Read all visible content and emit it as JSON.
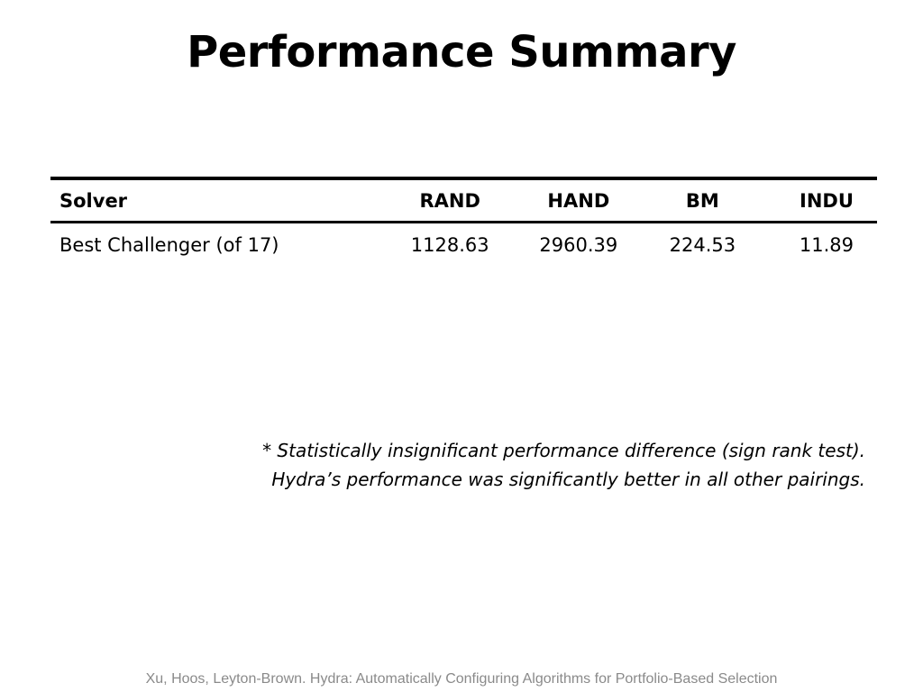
{
  "slide": {
    "title": "Performance Summary",
    "footer": "Xu, Hoos, Leyton-Brown. Hydra: Automatically Configuring Algorithms for Portfolio-Based Selection"
  },
  "table": {
    "headers": [
      "Solver",
      "RAND",
      "HAND",
      "BM",
      "INDU"
    ],
    "rows": [
      {
        "label": "Best Challenger (of 17)",
        "values": [
          "1128.63",
          "2960.39",
          "224.53",
          "11.89"
        ]
      }
    ]
  },
  "footnote": {
    "marker": "*",
    "line1": "Statistically insignificant performance difference (sign rank test).",
    "line2": "Hydra’s performance was significantly better in all other pairings."
  }
}
